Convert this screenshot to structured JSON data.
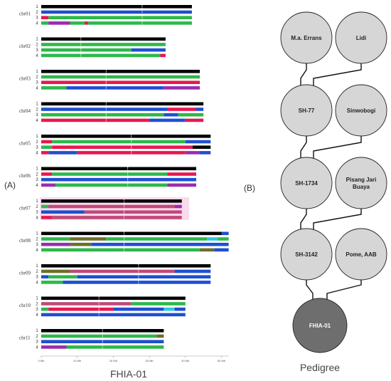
{
  "figure": {
    "panel_a_label": "(A)",
    "panel_b_label": "(B)",
    "panel_a_caption": "FHIA-01",
    "panel_b_caption": "Pedigree"
  },
  "colors": {
    "black": "#000000",
    "blue": "#1f4fd1",
    "green": "#2db84a",
    "red": "#e8174f",
    "purple": "#9b2bb0",
    "mauve": "#c0497a",
    "olive": "#6b6f2a",
    "cyan": "#2ec7d9",
    "pink_band": "#f6c9e4",
    "node_fill": "#d6d6d6",
    "node_dark": "#6e6e6e"
  },
  "axis": {
    "unit": "Mb",
    "max": 52,
    "ticks": [
      {
        "value": 0,
        "label": "0 Mb"
      },
      {
        "value": 10,
        "label": "10 Mb"
      },
      {
        "value": 20,
        "label": "20 Mb"
      },
      {
        "value": 30,
        "label": "30 Mb"
      },
      {
        "value": 40,
        "label": "40 Mb"
      },
      {
        "value": 50,
        "label": "50 Mb"
      }
    ]
  },
  "chromosomes": [
    {
      "name": "chr01",
      "length": 41.8,
      "centromere": 28,
      "tracks": [
        {
          "n": "1",
          "segments": [
            [
              "black",
              0,
              41.8
            ]
          ]
        },
        {
          "n": "2",
          "segments": [
            [
              "blue",
              0,
              41.8
            ]
          ]
        },
        {
          "n": "3",
          "segments": [
            [
              "red",
              0,
              2
            ],
            [
              "green",
              2,
              41.8
            ]
          ]
        },
        {
          "n": "4",
          "segments": [
            [
              "green",
              0,
              2
            ],
            [
              "purple",
              2,
              8
            ],
            [
              "green",
              8,
              12
            ],
            [
              "red",
              12,
              13
            ],
            [
              "green",
              13,
              41.8
            ]
          ]
        }
      ]
    },
    {
      "name": "chr02",
      "length": 34.5,
      "centromere": 11,
      "tracks": [
        {
          "n": "1",
          "segments": [
            [
              "black",
              0,
              34.5
            ]
          ]
        },
        {
          "n": "2",
          "segments": [
            [
              "green",
              0,
              34.5
            ]
          ]
        },
        {
          "n": "3",
          "segments": [
            [
              "green",
              0,
              25
            ],
            [
              "blue",
              25,
              34.5
            ]
          ]
        },
        {
          "n": "4",
          "segments": [
            [
              "green",
              0,
              33
            ],
            [
              "red",
              33,
              34.5
            ]
          ]
        }
      ]
    },
    {
      "name": "chr03",
      "length": 44,
      "centromere": 18,
      "tracks": [
        {
          "n": "1",
          "segments": [
            [
              "black",
              0,
              44
            ]
          ]
        },
        {
          "n": "2",
          "segments": [
            [
              "green",
              0,
              44
            ]
          ]
        },
        {
          "n": "3",
          "segments": [
            [
              "red",
              0,
              44
            ]
          ]
        },
        {
          "n": "4",
          "segments": [
            [
              "green",
              0,
              7
            ],
            [
              "blue",
              7,
              34
            ],
            [
              "purple",
              34,
              44
            ]
          ]
        }
      ]
    },
    {
      "name": "chr04",
      "length": 45,
      "centromere": 18,
      "tracks": [
        {
          "n": "1",
          "segments": [
            [
              "black",
              0,
              45
            ]
          ]
        },
        {
          "n": "2",
          "segments": [
            [
              "blue",
              0,
              35
            ],
            [
              "red",
              35,
              43
            ],
            [
              "blue",
              43,
              45
            ]
          ]
        },
        {
          "n": "3",
          "segments": [
            [
              "green",
              0,
              34
            ],
            [
              "blue",
              34,
              38
            ],
            [
              "green",
              38,
              45
            ]
          ]
        },
        {
          "n": "4",
          "segments": [
            [
              "red",
              0,
              30
            ],
            [
              "blue",
              30,
              40
            ],
            [
              "red",
              40,
              45
            ]
          ]
        }
      ]
    },
    {
      "name": "chr05",
      "length": 47,
      "centromere": 25,
      "tracks": [
        {
          "n": "1",
          "segments": [
            [
              "black",
              0,
              47
            ]
          ]
        },
        {
          "n": "2",
          "segments": [
            [
              "red",
              0,
              3
            ],
            [
              "green",
              3,
              40
            ],
            [
              "blue",
              40,
              47
            ]
          ]
        },
        {
          "n": "3",
          "segments": [
            [
              "green",
              0,
              3
            ],
            [
              "red",
              3,
              42
            ],
            [
              "black",
              42,
              47
            ]
          ]
        },
        {
          "n": "4",
          "segments": [
            [
              "red",
              0,
              2
            ],
            [
              "blue",
              2,
              10
            ],
            [
              "red",
              10,
              40
            ],
            [
              "purple",
              40,
              44
            ],
            [
              "blue",
              44,
              47
            ]
          ]
        }
      ]
    },
    {
      "name": "chr06",
      "length": 43,
      "centromere": 24,
      "tracks": [
        {
          "n": "1",
          "segments": [
            [
              "black",
              0,
              43
            ]
          ]
        },
        {
          "n": "2",
          "segments": [
            [
              "red",
              0,
              3
            ],
            [
              "green",
              3,
              35
            ],
            [
              "red",
              35,
              43
            ]
          ]
        },
        {
          "n": "3",
          "segments": [
            [
              "blue",
              0,
              43
            ]
          ]
        },
        {
          "n": "4",
          "segments": [
            [
              "purple",
              0,
              4
            ],
            [
              "green",
              4,
              35
            ],
            [
              "purple",
              35,
              43
            ]
          ]
        }
      ]
    },
    {
      "name": "chr07",
      "length": 39,
      "centromere": 23,
      "band": [
        0,
        41
      ],
      "tracks": [
        {
          "n": "1",
          "segments": [
            [
              "black",
              0,
              39
            ]
          ]
        },
        {
          "n": "2",
          "segments": [
            [
              "green",
              0,
              2
            ],
            [
              "mauve",
              2,
              37
            ],
            [
              "purple",
              37,
              39
            ]
          ]
        },
        {
          "n": "3",
          "segments": [
            [
              "blue",
              0,
              12
            ],
            [
              "mauve",
              12,
              39
            ]
          ]
        },
        {
          "n": "4",
          "segments": [
            [
              "red",
              0,
              3
            ],
            [
              "mauve",
              3,
              39
            ]
          ]
        }
      ]
    },
    {
      "name": "chr08",
      "length": 52,
      "centromere": 23,
      "tracks": [
        {
          "n": "1",
          "segments": [
            [
              "black",
              0,
              50
            ],
            [
              "blue",
              50,
              52
            ]
          ]
        },
        {
          "n": "2",
          "segments": [
            [
              "green",
              0,
              8
            ],
            [
              "olive",
              8,
              18
            ],
            [
              "green",
              18,
              46
            ],
            [
              "cyan",
              46,
              49
            ],
            [
              "green",
              49,
              52
            ]
          ]
        },
        {
          "n": "3",
          "segments": [
            [
              "purple",
              0,
              8
            ],
            [
              "olive",
              8,
              14
            ],
            [
              "blue",
              14,
              52
            ]
          ]
        },
        {
          "n": "4",
          "segments": [
            [
              "green",
              0,
              44
            ],
            [
              "olive",
              44,
              48
            ],
            [
              "blue",
              48,
              52
            ]
          ]
        }
      ]
    },
    {
      "name": "chr09",
      "length": 47,
      "centromere": 27,
      "tracks": [
        {
          "n": "1",
          "segments": [
            [
              "black",
              0,
              47
            ]
          ]
        },
        {
          "n": "2",
          "segments": [
            [
              "olive",
              0,
              8
            ],
            [
              "mauve",
              8,
              37
            ],
            [
              "blue",
              37,
              47
            ]
          ]
        },
        {
          "n": "3",
          "segments": [
            [
              "blue",
              0,
              2
            ],
            [
              "green",
              2,
              10
            ],
            [
              "blue",
              10,
              47
            ]
          ]
        },
        {
          "n": "4",
          "segments": [
            [
              "green",
              0,
              6
            ],
            [
              "blue",
              6,
              47
            ]
          ]
        }
      ]
    },
    {
      "name": "chr10",
      "length": 40,
      "centromere": 16,
      "tracks": [
        {
          "n": "1",
          "segments": [
            [
              "black",
              0,
              40
            ]
          ]
        },
        {
          "n": "2",
          "segments": [
            [
              "mauve",
              0,
              25
            ],
            [
              "green",
              25,
              40
            ]
          ]
        },
        {
          "n": "3",
          "segments": [
            [
              "green",
              0,
              2
            ],
            [
              "red",
              2,
              20
            ],
            [
              "blue",
              20,
              34
            ],
            [
              "cyan",
              34,
              37
            ],
            [
              "blue",
              37,
              40
            ]
          ]
        },
        {
          "n": "4",
          "segments": [
            [
              "blue",
              0,
              40
            ]
          ]
        }
      ]
    },
    {
      "name": "chr11",
      "length": 34,
      "centromere": 17,
      "tracks": [
        {
          "n": "1",
          "segments": [
            [
              "black",
              0,
              34
            ]
          ]
        },
        {
          "n": "2",
          "segments": [
            [
              "green",
              0,
              32
            ],
            [
              "olive",
              32,
              34
            ]
          ]
        },
        {
          "n": "3",
          "segments": [
            [
              "blue",
              0,
              34
            ]
          ]
        },
        {
          "n": "4",
          "segments": [
            [
              "purple",
              0,
              7
            ],
            [
              "green",
              7,
              34
            ]
          ]
        }
      ]
    }
  ],
  "pedigree": {
    "nodes": [
      {
        "id": "ma-errans",
        "label": [
          "M.a. Errans"
        ],
        "dark": false
      },
      {
        "id": "lidi",
        "label": [
          "Lidi"
        ],
        "dark": false
      },
      {
        "id": "sh-77",
        "label": [
          "SH-77"
        ],
        "dark": false
      },
      {
        "id": "sinwobogi",
        "label": [
          "Sinwobogi"
        ],
        "dark": false
      },
      {
        "id": "sh-1734",
        "label": [
          "SH-1734"
        ],
        "dark": false
      },
      {
        "id": "pisang-jari-buaya",
        "label": [
          "Pisang Jari",
          "Buaya"
        ],
        "dark": false
      },
      {
        "id": "sh-3142",
        "label": [
          "SH-3142"
        ],
        "dark": false
      },
      {
        "id": "pome-aab",
        "label": [
          "Pome, AAB"
        ],
        "dark": false
      },
      {
        "id": "fhia-01",
        "label": [
          "FHIA-01"
        ],
        "dark": true
      }
    ],
    "edges": [
      [
        "ma-errans",
        "sh-77"
      ],
      [
        "lidi",
        "sh-77"
      ],
      [
        "sh-77",
        "sh-1734"
      ],
      [
        "sinwobogi",
        "sh-1734"
      ],
      [
        "sh-1734",
        "sh-3142"
      ],
      [
        "pisang-jari-buaya",
        "sh-3142"
      ],
      [
        "sh-3142",
        "fhia-01"
      ],
      [
        "pome-aab",
        "fhia-01"
      ]
    ]
  }
}
